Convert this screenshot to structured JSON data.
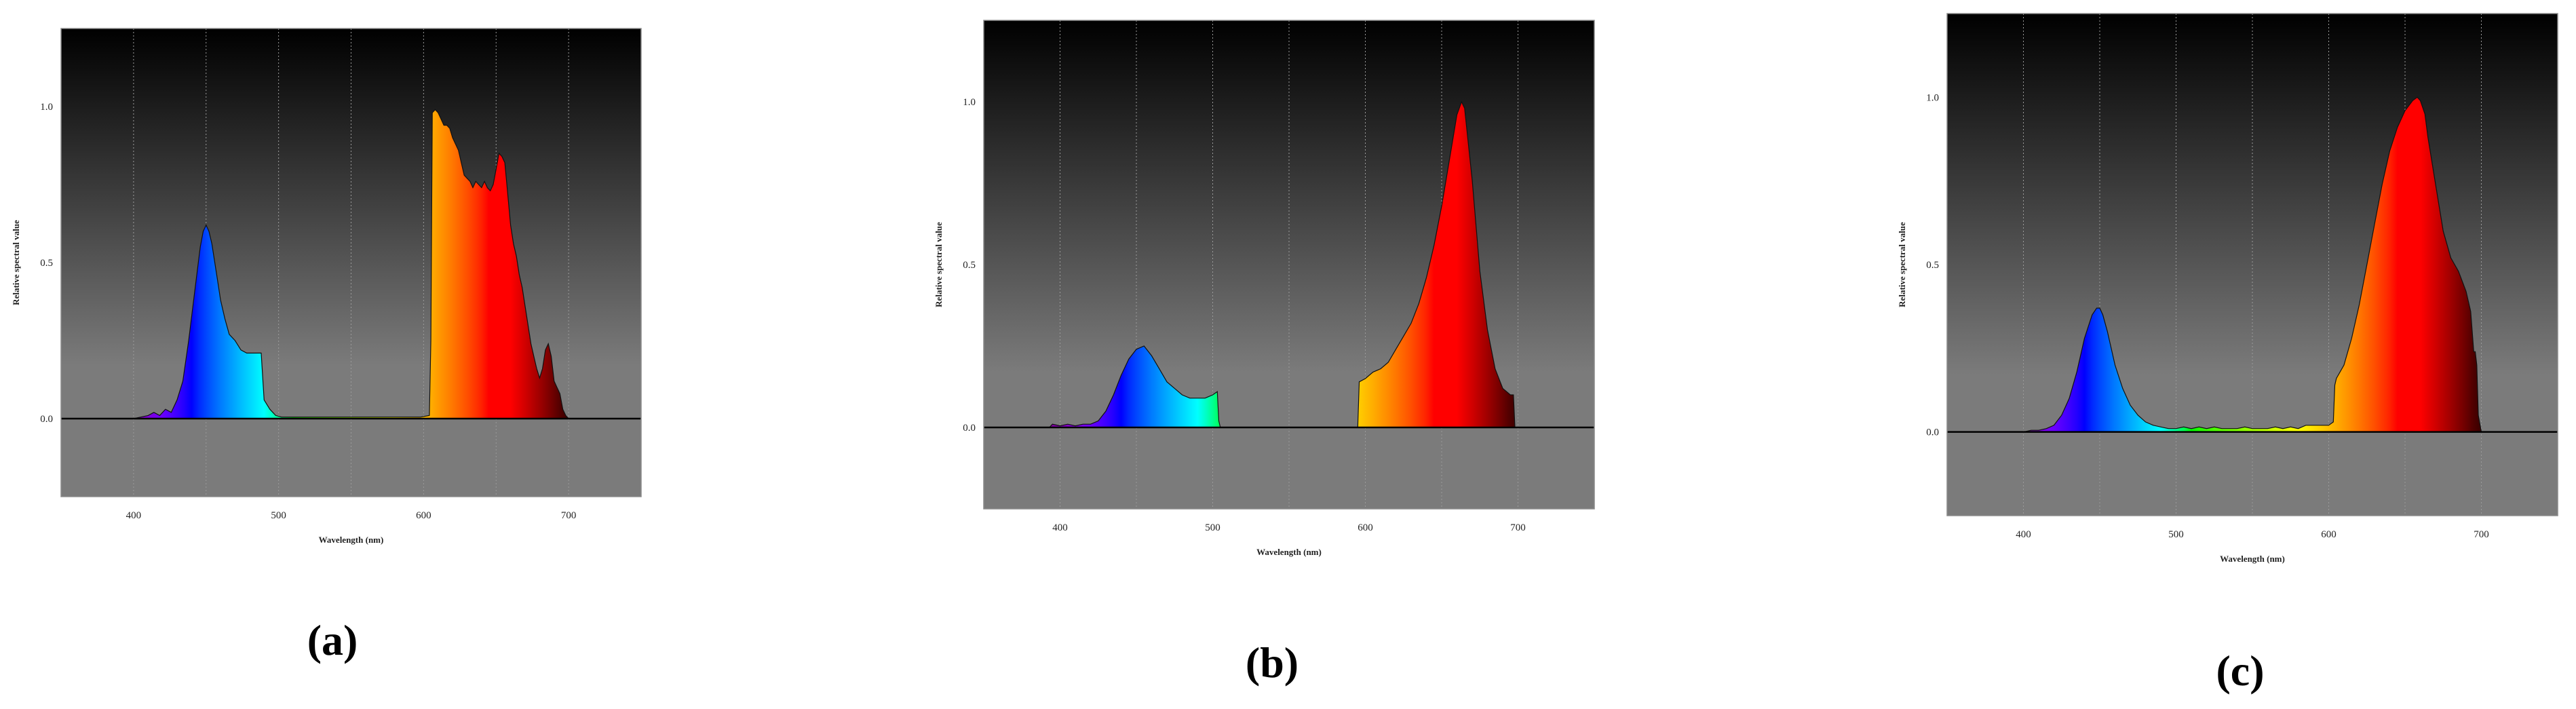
{
  "chart_data": [
    {
      "type": "area",
      "caption": "(a)",
      "title": "",
      "xlabel": "Wavelength (nm)",
      "ylabel": "Relative spectral value",
      "xlim": [
        350,
        750
      ],
      "ylim": [
        -0.25,
        1.25
      ],
      "xticks": [
        400,
        500,
        600,
        700
      ],
      "yticks": [
        0.0,
        0.5,
        1.0
      ],
      "xtick_labels": [
        "400",
        "500",
        "600",
        "700"
      ],
      "ytick_labels": [
        "0.0",
        "0.5",
        "1.0"
      ],
      "grid": "vertical",
      "series": [
        {
          "x": [
            400,
            405,
            410,
            414,
            418,
            422,
            426,
            430,
            434,
            438,
            442,
            446,
            448,
            450,
            452,
            454,
            456,
            458,
            460,
            463,
            466,
            470,
            474,
            478,
            482,
            486,
            488,
            490,
            494,
            498,
            502,
            510,
            520,
            530,
            540,
            550,
            560,
            570,
            580,
            590,
            598,
            604,
            605,
            606,
            608,
            610,
            612,
            614,
            616,
            618,
            620,
            622,
            624,
            626,
            628,
            630,
            632,
            634,
            636,
            638,
            640,
            642,
            644,
            646,
            648,
            650,
            652,
            654,
            656,
            658,
            660,
            662,
            664,
            666,
            668,
            670,
            672,
            674,
            676,
            678,
            680,
            682,
            684,
            686,
            688,
            690,
            692,
            694,
            696,
            698,
            700
          ],
          "y": [
            0.0,
            0.005,
            0.01,
            0.02,
            0.01,
            0.03,
            0.02,
            0.06,
            0.12,
            0.25,
            0.4,
            0.55,
            0.6,
            0.62,
            0.6,
            0.56,
            0.5,
            0.44,
            0.38,
            0.32,
            0.27,
            0.25,
            0.22,
            0.21,
            0.21,
            0.21,
            0.21,
            0.06,
            0.03,
            0.01,
            0.005,
            0.005,
            0.005,
            0.005,
            0.005,
            0.005,
            0.005,
            0.005,
            0.005,
            0.005,
            0.005,
            0.01,
            0.25,
            0.98,
            0.99,
            0.98,
            0.96,
            0.94,
            0.94,
            0.93,
            0.9,
            0.88,
            0.86,
            0.82,
            0.78,
            0.77,
            0.76,
            0.74,
            0.76,
            0.75,
            0.74,
            0.76,
            0.74,
            0.73,
            0.75,
            0.8,
            0.85,
            0.84,
            0.82,
            0.72,
            0.62,
            0.56,
            0.52,
            0.46,
            0.42,
            0.36,
            0.3,
            0.24,
            0.2,
            0.16,
            0.13,
            0.16,
            0.22,
            0.24,
            0.2,
            0.12,
            0.1,
            0.08,
            0.03,
            0.01,
            0.0
          ]
        }
      ]
    },
    {
      "type": "area",
      "caption": "(b)",
      "title": "",
      "xlabel": "Wavelength (nm)",
      "ylabel": "Relative spectral value",
      "xlim": [
        350,
        750
      ],
      "ylim": [
        -0.25,
        1.25
      ],
      "xticks": [
        400,
        500,
        600,
        700
      ],
      "yticks": [
        0.0,
        0.5,
        1.0
      ],
      "xtick_labels": [
        "400",
        "500",
        "600",
        "700"
      ],
      "ytick_labels": [
        "0.0",
        "0.5",
        "1.0"
      ],
      "grid": "vertical",
      "series": [
        {
          "x": [
            393,
            395,
            400,
            405,
            410,
            415,
            420,
            425,
            430,
            435,
            440,
            445,
            450,
            455,
            460,
            465,
            470,
            475,
            480,
            485,
            490,
            495,
            500,
            503,
            504,
            505,
            590,
            595,
            596,
            600,
            605,
            610,
            615,
            620,
            625,
            630,
            635,
            640,
            645,
            650,
            655,
            660,
            663,
            665,
            670,
            675,
            680,
            685,
            690,
            695,
            697,
            698
          ],
          "y": [
            0.0,
            0.01,
            0.005,
            0.01,
            0.005,
            0.01,
            0.01,
            0.02,
            0.05,
            0.1,
            0.16,
            0.21,
            0.24,
            0.25,
            0.22,
            0.18,
            0.14,
            0.12,
            0.1,
            0.09,
            0.09,
            0.09,
            0.1,
            0.11,
            0.02,
            0.0,
            0.0,
            0.0,
            0.14,
            0.15,
            0.17,
            0.18,
            0.2,
            0.24,
            0.28,
            0.32,
            0.38,
            0.46,
            0.56,
            0.68,
            0.82,
            0.96,
            1.0,
            0.98,
            0.76,
            0.48,
            0.3,
            0.18,
            0.12,
            0.1,
            0.1,
            0.0
          ]
        }
      ]
    },
    {
      "type": "area",
      "caption": "(c)",
      "title": "",
      "xlabel": "Wavelength (nm)",
      "ylabel": "Relative spectral value",
      "xlim": [
        350,
        750
      ],
      "ylim": [
        -0.25,
        1.25
      ],
      "xticks": [
        400,
        500,
        600,
        700
      ],
      "yticks": [
        0.0,
        0.5,
        1.0
      ],
      "xtick_labels": [
        "400",
        "500",
        "600",
        "700"
      ],
      "ytick_labels": [
        "0.0",
        "0.5",
        "1.0"
      ],
      "grid": "vertical",
      "series": [
        {
          "x": [
            400,
            405,
            410,
            415,
            420,
            425,
            430,
            435,
            440,
            445,
            448,
            450,
            452,
            455,
            460,
            465,
            470,
            475,
            480,
            485,
            490,
            495,
            500,
            505,
            510,
            515,
            520,
            525,
            530,
            535,
            540,
            545,
            550,
            555,
            560,
            565,
            570,
            575,
            580,
            585,
            590,
            595,
            600,
            603,
            604,
            605,
            610,
            615,
            620,
            625,
            630,
            635,
            640,
            645,
            650,
            655,
            658,
            660,
            663,
            665,
            670,
            675,
            680,
            685,
            690,
            693,
            695,
            696,
            697,
            698,
            700
          ],
          "y": [
            0.0,
            0.005,
            0.005,
            0.01,
            0.02,
            0.05,
            0.1,
            0.18,
            0.28,
            0.35,
            0.37,
            0.37,
            0.35,
            0.3,
            0.2,
            0.13,
            0.08,
            0.05,
            0.03,
            0.02,
            0.015,
            0.01,
            0.01,
            0.015,
            0.01,
            0.015,
            0.01,
            0.015,
            0.01,
            0.01,
            0.01,
            0.015,
            0.01,
            0.01,
            0.01,
            0.015,
            0.01,
            0.015,
            0.01,
            0.02,
            0.02,
            0.02,
            0.02,
            0.03,
            0.14,
            0.16,
            0.2,
            0.28,
            0.38,
            0.5,
            0.62,
            0.74,
            0.84,
            0.91,
            0.96,
            0.99,
            1.0,
            0.99,
            0.95,
            0.88,
            0.74,
            0.6,
            0.52,
            0.48,
            0.42,
            0.36,
            0.24,
            0.24,
            0.2,
            0.05,
            0.0
          ]
        }
      ]
    }
  ]
}
